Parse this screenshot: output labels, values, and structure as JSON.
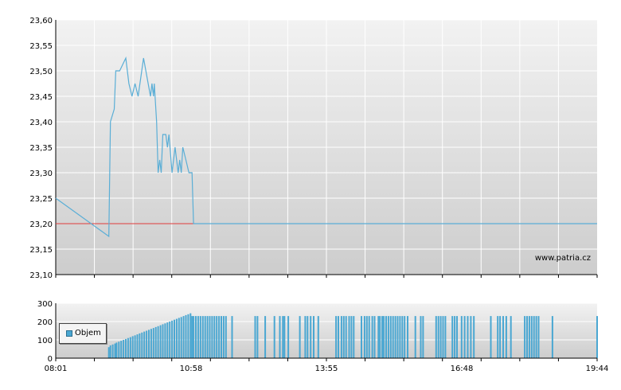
{
  "chart_data": [
    {
      "type": "line",
      "watermark": "www.patria.cz",
      "ylim": [
        23.1,
        23.6
      ],
      "yticks": [
        "23,60",
        "23,55",
        "23,50",
        "23,45",
        "23,40",
        "23,35",
        "23,30",
        "23,25",
        "23,20",
        "23,15",
        "23,10"
      ],
      "reference_value": 23.2,
      "series": [
        {
          "color": "#5aaed6",
          "points": [
            [
              "08:01",
              23.25
            ],
            [
              "09:10",
              23.175
            ],
            [
              "09:12",
              23.4
            ],
            [
              "09:17",
              23.425
            ],
            [
              "09:19",
              23.5
            ],
            [
              "09:24",
              23.5
            ],
            [
              "09:32",
              23.525
            ],
            [
              "09:36",
              23.475
            ],
            [
              "09:40",
              23.45
            ],
            [
              "09:44",
              23.475
            ],
            [
              "09:48",
              23.45
            ],
            [
              "09:55",
              23.525
            ],
            [
              "10:04",
              23.45
            ],
            [
              "10:06",
              23.475
            ],
            [
              "10:08",
              23.45
            ],
            [
              "10:09",
              23.475
            ],
            [
              "10:12",
              23.4
            ],
            [
              "10:14",
              23.3
            ],
            [
              "10:16",
              23.325
            ],
            [
              "10:18",
              23.3
            ],
            [
              "10:20",
              23.375
            ],
            [
              "10:24",
              23.375
            ],
            [
              "10:26",
              23.35
            ],
            [
              "10:28",
              23.375
            ],
            [
              "10:32",
              23.3
            ],
            [
              "10:36",
              23.35
            ],
            [
              "10:40",
              23.3
            ],
            [
              "10:42",
              23.325
            ],
            [
              "10:44",
              23.3
            ],
            [
              "10:46",
              23.35
            ],
            [
              "10:50",
              23.325
            ],
            [
              "10:54",
              23.3
            ],
            [
              "10:58",
              23.3
            ],
            [
              "11:00",
              23.2
            ],
            [
              "19:44",
              23.2
            ]
          ]
        }
      ]
    },
    {
      "type": "bar",
      "ylim": [
        0,
        300
      ],
      "yticks": [
        "300",
        "200",
        "100",
        "0"
      ],
      "xticks": [
        "08:01",
        "10:58",
        "13:55",
        "16:48",
        "19:44"
      ],
      "legend": [
        "Objem"
      ],
      "legend_position": "bottom-left",
      "color": "#4aa7d2",
      "bars": [
        [
          "09:10",
          60
        ],
        [
          "09:12",
          70
        ],
        [
          "09:15",
          75
        ],
        [
          "09:18",
          80
        ],
        [
          "09:20",
          85
        ],
        [
          "09:23",
          90
        ],
        [
          "09:26",
          95
        ],
        [
          "09:29",
          100
        ],
        [
          "09:32",
          105
        ],
        [
          "09:35",
          110
        ],
        [
          "09:38",
          115
        ],
        [
          "09:41",
          120
        ],
        [
          "09:44",
          125
        ],
        [
          "09:47",
          130
        ],
        [
          "09:50",
          135
        ],
        [
          "09:53",
          140
        ],
        [
          "09:56",
          145
        ],
        [
          "09:59",
          150
        ],
        [
          "10:02",
          155
        ],
        [
          "10:05",
          160
        ],
        [
          "10:08",
          165
        ],
        [
          "10:11",
          170
        ],
        [
          "10:14",
          175
        ],
        [
          "10:17",
          180
        ],
        [
          "10:20",
          185
        ],
        [
          "10:23",
          190
        ],
        [
          "10:26",
          195
        ],
        [
          "10:29",
          200
        ],
        [
          "10:32",
          205
        ],
        [
          "10:35",
          210
        ],
        [
          "10:38",
          215
        ],
        [
          "10:41",
          220
        ],
        [
          "10:44",
          225
        ],
        [
          "10:47",
          230
        ],
        [
          "10:50",
          235
        ],
        [
          "10:53",
          240
        ],
        [
          "10:56",
          245
        ],
        [
          "10:58",
          230
        ],
        [
          "11:00",
          230
        ],
        [
          "11:03",
          230
        ],
        [
          "11:06",
          230
        ],
        [
          "11:09",
          230
        ],
        [
          "11:12",
          230
        ],
        [
          "11:15",
          230
        ],
        [
          "11:18",
          230
        ],
        [
          "11:21",
          230
        ],
        [
          "11:24",
          230
        ],
        [
          "11:27",
          230
        ],
        [
          "11:30",
          230
        ],
        [
          "11:33",
          230
        ],
        [
          "11:36",
          230
        ],
        [
          "11:39",
          230
        ],
        [
          "11:42",
          230
        ],
        [
          "11:50",
          230
        ],
        [
          "12:20",
          230
        ],
        [
          "12:23",
          230
        ],
        [
          "12:33",
          230
        ],
        [
          "12:45",
          230
        ],
        [
          "12:52",
          230
        ],
        [
          "12:56",
          230
        ],
        [
          "12:58",
          230
        ],
        [
          "13:03",
          230
        ],
        [
          "13:18",
          230
        ],
        [
          "13:25",
          230
        ],
        [
          "13:28",
          230
        ],
        [
          "13:32",
          230
        ],
        [
          "13:36",
          230
        ],
        [
          "13:42",
          230
        ],
        [
          "14:05",
          230
        ],
        [
          "14:08",
          230
        ],
        [
          "14:12",
          230
        ],
        [
          "14:15",
          230
        ],
        [
          "14:18",
          230
        ],
        [
          "14:22",
          230
        ],
        [
          "14:25",
          230
        ],
        [
          "14:28",
          230
        ],
        [
          "14:38",
          230
        ],
        [
          "14:42",
          230
        ],
        [
          "14:45",
          230
        ],
        [
          "14:48",
          230
        ],
        [
          "14:52",
          230
        ],
        [
          "14:55",
          230
        ],
        [
          "15:00",
          230
        ],
        [
          "15:02",
          230
        ],
        [
          "15:05",
          230
        ],
        [
          "15:07",
          230
        ],
        [
          "15:10",
          230
        ],
        [
          "15:13",
          230
        ],
        [
          "15:16",
          230
        ],
        [
          "15:19",
          230
        ],
        [
          "15:22",
          230
        ],
        [
          "15:25",
          230
        ],
        [
          "15:28",
          230
        ],
        [
          "15:31",
          230
        ],
        [
          "15:34",
          230
        ],
        [
          "15:38",
          230
        ],
        [
          "15:48",
          230
        ],
        [
          "15:55",
          230
        ],
        [
          "15:58",
          230
        ],
        [
          "16:15",
          230
        ],
        [
          "16:18",
          230
        ],
        [
          "16:21",
          230
        ],
        [
          "16:24",
          230
        ],
        [
          "16:27",
          230
        ],
        [
          "16:36",
          230
        ],
        [
          "16:39",
          230
        ],
        [
          "16:42",
          230
        ],
        [
          "16:48",
          230
        ],
        [
          "16:52",
          230
        ],
        [
          "16:56",
          230
        ],
        [
          "17:00",
          230
        ],
        [
          "17:04",
          230
        ],
        [
          "17:26",
          230
        ],
        [
          "17:35",
          230
        ],
        [
          "17:38",
          230
        ],
        [
          "17:42",
          230
        ],
        [
          "17:46",
          230
        ],
        [
          "17:52",
          230
        ],
        [
          "18:10",
          230
        ],
        [
          "18:13",
          230
        ],
        [
          "18:16",
          230
        ],
        [
          "18:19",
          230
        ],
        [
          "18:22",
          230
        ],
        [
          "18:25",
          230
        ],
        [
          "18:28",
          230
        ],
        [
          "18:46",
          230
        ],
        [
          "19:44",
          230
        ]
      ]
    }
  ]
}
